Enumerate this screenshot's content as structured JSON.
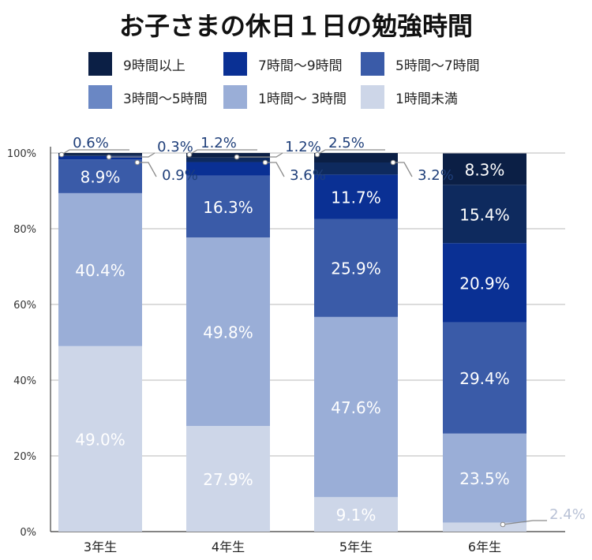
{
  "chart_data": {
    "type": "bar",
    "stacked": true,
    "title": "お子さまの休日１日の勉強時間",
    "categories": [
      "3年生",
      "4年生",
      "5年生",
      "6年生"
    ],
    "series": [
      {
        "name": "1時間未満",
        "color": "#cdd6e8",
        "label_color": "#ffffff",
        "values": [
          49.0,
          27.9,
          9.1,
          2.4
        ]
      },
      {
        "name": "1時間～ 3時間",
        "color": "#9aaed7",
        "label_color": "#ffffff",
        "values": [
          40.4,
          49.8,
          47.6,
          23.5
        ]
      },
      {
        "name": "3時間～5時間",
        "color": "#6a87c4",
        "label_color": "#ffffff",
        "values": [
          0,
          0,
          0,
          0
        ]
      },
      {
        "name": "5時間～7時間",
        "color": "#3a5ba8",
        "label_color": "#ffffff",
        "values": [
          8.9,
          16.3,
          25.9,
          29.4
        ]
      },
      {
        "name": "7時間～9時間",
        "color": "#0a3094",
        "label_color": "#ffffff",
        "values": [
          0.9,
          3.6,
          11.7,
          20.9
        ]
      },
      {
        "name": "9時間以上",
        "color": "#0e2a5e",
        "label_color": "#ffffff",
        "values": [
          0.3,
          1.2,
          3.2,
          15.4
        ]
      }
    ],
    "top_segment": {
      "name": "top",
      "color": "#0b1f45",
      "values": [
        0.6,
        1.2,
        2.5,
        8.3
      ]
    },
    "legend_order": [
      "9時間以上",
      "7時間～9時間",
      "5時間～7時間",
      "3時間～5時間",
      "1時間～ 3時間",
      "1時間未満"
    ],
    "legend_colors": [
      "#0b1f45",
      "#0a3094",
      "#3a5ba8",
      "#6a87c4",
      "#9aaed7",
      "#cdd6e8"
    ],
    "y_ticks": [
      "0%",
      "20%",
      "40%",
      "60%",
      "80%",
      "100%"
    ],
    "ylim": [
      0,
      100
    ],
    "callouts": [
      {
        "text": "0.6%",
        "bar": 0,
        "side": "above"
      },
      {
        "text": "0.3%",
        "bar": 0,
        "side": "right_top"
      },
      {
        "text": "0.9%",
        "bar": 0,
        "side": "right_mid"
      },
      {
        "text": "1.2%",
        "bar": 1,
        "side": "above"
      },
      {
        "text": "1.2%",
        "bar": 1,
        "side": "right_top"
      },
      {
        "text": "3.6%",
        "bar": 1,
        "side": "right_mid"
      },
      {
        "text": "2.5%",
        "bar": 2,
        "side": "above"
      },
      {
        "text": "3.2%",
        "bar": 2,
        "side": "right_mid"
      },
      {
        "text": "2.4%",
        "bar": 3,
        "side": "right_bottom"
      }
    ]
  }
}
